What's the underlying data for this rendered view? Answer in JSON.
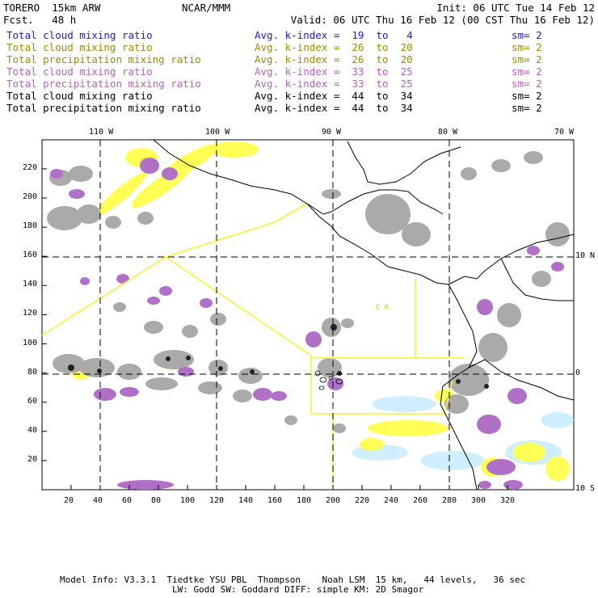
{
  "header": {
    "model": "TORERO  15km ARW",
    "forecast": "Fcst.   48 h",
    "center": "NCAR/MMM",
    "init": "Init: 06 UTC Tue 14 Feb 12",
    "valid": "Valid: 06 UTC Thu 16 Feb 12 (00 CST Thu 16 Feb 12)"
  },
  "legend": [
    {
      "field": "Total cloud mixing ratio",
      "kindex": "Avg. k-index =  19  to   4",
      "sm": "sm= 2",
      "color": "#1818e0"
    },
    {
      "field": "Total cloud mixing ratio",
      "kindex": "Avg. k-index =  26  to  20",
      "sm": "sm= 2",
      "color": "#a08a00"
    },
    {
      "field": "Total precipitation mixing ratio",
      "kindex": "Avg. k-index =  26  to  20",
      "sm": "sm= 2",
      "color": "#a08a00"
    },
    {
      "field": "Total cloud mixing ratio",
      "kindex": "Avg. k-index =  33  to  25",
      "sm": "sm= 2",
      "color": "#b45fc4"
    },
    {
      "field": "Total precipitation mixing ratio",
      "kindex": "Avg. k-index =  33  to  25",
      "sm": "sm= 2",
      "color": "#b45fc4"
    },
    {
      "field": "Total cloud mixing ratio",
      "kindex": "Avg. k-index =  44  to  34",
      "sm": "sm= 2",
      "color": "#000000"
    },
    {
      "field": "Total precipitation mixing ratio",
      "kindex": "Avg. k-index =  44  to  34",
      "sm": "sm= 2",
      "color": "#000000"
    }
  ],
  "axes": {
    "top_lon": [
      "110 W",
      "100 W",
      "90 W",
      "80 W",
      "70 W"
    ],
    "right_lat": [
      "10 N",
      "0",
      "10 S"
    ],
    "x_ticks": [
      "20",
      "40",
      "60",
      "80",
      "100",
      "120",
      "140",
      "160",
      "180",
      "200",
      "220",
      "240",
      "260",
      "280",
      "300",
      "320"
    ],
    "y_ticks": [
      "220",
      "200",
      "180",
      "160",
      "140",
      "120",
      "100",
      "80",
      "60",
      "40",
      "20"
    ]
  },
  "map_labels": {
    "country": "C R"
  },
  "colors": {
    "cloud": "#aaaaaa",
    "precip": "#b070c8",
    "light_precip": "#ffff55",
    "core": "#222222",
    "boundary": "#ffee33",
    "coast": "#000000",
    "light_blue": "#cfefff"
  },
  "footer": {
    "line1": "Model Info: V3.3.1  Tiedtke YSU PBL  Thompson    Noah LSM  15 km,   44 levels,   36 sec",
    "line2": "LW: Godd SW: Goddard DIFF: simple KM: 2D Smagor"
  }
}
